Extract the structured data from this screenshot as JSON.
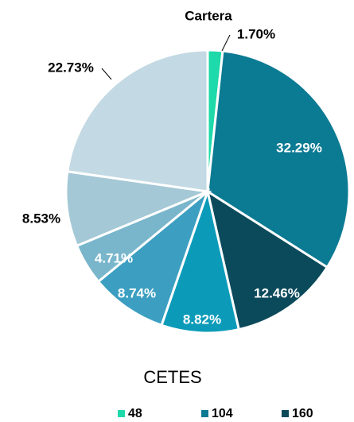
{
  "chart_data": {
    "type": "pie",
    "title": "Cartera",
    "legend_title": "CETES",
    "categories": [
      "48",
      "104",
      "160",
      null,
      null,
      null,
      null,
      null
    ],
    "values": [
      1.7,
      32.29,
      12.46,
      8.82,
      8.74,
      4.71,
      8.53,
      22.73
    ],
    "value_labels": [
      "1.70%",
      "32.29%",
      "12.46%",
      "8.82%",
      "8.74%",
      "4.71%",
      "8.53%",
      "22.73%"
    ],
    "colors": [
      "#1ed9a9",
      "#0b7a93",
      "#0b4a5b",
      "#0b9bb9",
      "#3c9fc1",
      "#79b6cb",
      "#a4c8d6",
      "#c3d9e3"
    ],
    "legend": "bottom"
  }
}
